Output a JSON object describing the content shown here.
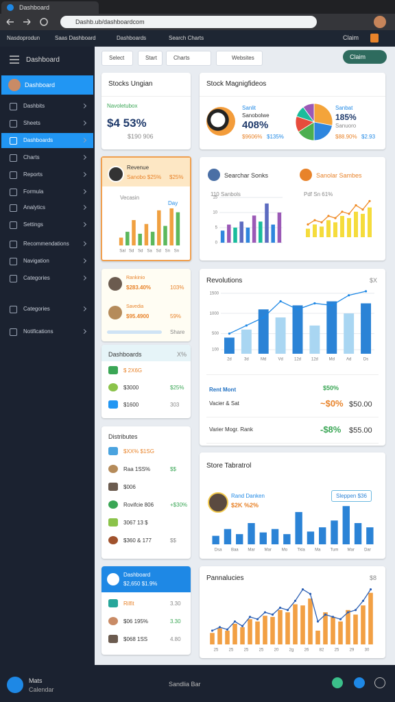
{
  "browser": {
    "tab": "Dashboard",
    "url": "Dashb.ub/dashboardcom",
    "bookmarks": [
      "Nasdoprodun",
      "Saas Dashboard",
      "Dashboards",
      "Search Charts"
    ],
    "action": "Claim"
  },
  "sidebar": {
    "title": "Dashboard",
    "profile": "Dashboard",
    "items": [
      "Dashbits",
      "Sheets",
      "Dashboards",
      "Charts",
      "Reports",
      "Formula",
      "Analytics",
      "Settings",
      "Recommendations",
      "Navigation",
      "Categories",
      "Categories",
      "Notifications"
    ]
  },
  "toolbar": [
    "Select",
    "Start",
    "Charts",
    "Websites"
  ],
  "cards": {
    "stocks": {
      "title": "Stocks Ungian",
      "label": "Navoletubox",
      "value": "$4 53%",
      "sub": "$190 906"
    },
    "magnitudes": {
      "title": "Stock Magnigfideos",
      "left": {
        "name": "Sanlit",
        "sub": "Sanobolwe",
        "value": "408%",
        "foot": [
          "$9606%",
          "$135%"
        ]
      },
      "right": {
        "name": "Sanbat",
        "value": "185%",
        "sub": "Sanuoro",
        "foot": [
          "$88.90%",
          "$2.93"
        ]
      },
      "pie": {
        "values": [
          28,
          22,
          16,
          14,
          10,
          10
        ],
        "colors": [
          "#f4a43a",
          "#2e86de",
          "#4caf50",
          "#e74c3c",
          "#1abc9c",
          "#9b59b6"
        ]
      }
    },
    "revenue": {
      "name": "Revenue",
      "sub": "Sanobo $25%",
      "right": "$25%",
      "label": "Vecasin",
      "period": "Day",
      "chart": {
        "values": [
          8,
          14,
          26,
          12,
          22,
          14,
          36,
          20,
          38,
          34
        ],
        "ylim": [
          0,
          45
        ],
        "colors": [
          "#f0a040",
          "#5cb85c"
        ],
        "xlabels": [
          "Sal",
          "Sd",
          "Sd",
          "Sa",
          "Sd",
          "Sn",
          "Sn"
        ]
      }
    },
    "searches": {
      "left_title": "Searchar Sonks",
      "right_title": "Sanolar Sambes",
      "left_label": "110 Sanbols",
      "right_label": "Pdf Sn 61%",
      "left_chart": {
        "values": [
          4,
          6,
          5,
          7,
          5,
          9,
          7,
          13,
          6,
          10
        ],
        "ylim": [
          0,
          15
        ],
        "yticks": [
          0,
          5,
          10,
          15
        ],
        "colors": [
          "#2e86de",
          "#9b59b6",
          "#1abc9c",
          "#5c6bc0"
        ]
      },
      "right_chart": {
        "values": [
          4,
          6,
          5,
          8,
          7,
          10,
          9,
          12,
          11,
          14
        ],
        "ylim": [
          0,
          20
        ],
        "color": "#f5dc3c",
        "line": [
          6,
          8,
          7,
          10,
          9,
          12,
          11,
          15,
          13,
          17
        ],
        "line_color": "#f08a24"
      }
    },
    "rankings": {
      "rows": [
        {
          "name": "Rankinio",
          "value": "$283.40%",
          "pct": "103%"
        },
        {
          "name": "Savedia",
          "value": "$95.4900",
          "pct": "59%"
        }
      ],
      "footer": "Share"
    },
    "revolutions": {
      "title": "Revolutions",
      "badge": "$X",
      "chart": {
        "values": [
          400,
          600,
          1100,
          900,
          1200,
          700,
          1300,
          1000,
          1250
        ],
        "ylim": [
          0,
          1700
        ],
        "yticks": [
          100,
          500,
          1000,
          1500
        ],
        "colors": [
          "#2b83d6",
          "#a9d6f2"
        ],
        "line": [
          500,
          700,
          900,
          1300,
          1100,
          1250,
          1200,
          1450,
          1550
        ],
        "line_color": "#1e88e5",
        "xlabels": [
          "2d",
          "3d",
          "Md",
          "Vd",
          "12d",
          "12d",
          "Md",
          "Ad",
          "Ds"
        ]
      },
      "rows": [
        {
          "name": "Rent Mont",
          "pct": "$50%"
        },
        {
          "name": "Vacier & Sat",
          "pct": "~$0%",
          "value": "$50.00"
        },
        {
          "name": "Varier Mogr. Rank",
          "pct": "-$8%",
          "value": "$55.00"
        }
      ]
    },
    "dashboards": {
      "title": "Dashboards",
      "badge": "X%",
      "rows": [
        [
          "$ 2X6G"
        ],
        [
          "$3000",
          "$25%"
        ],
        [
          "$1600",
          "303"
        ]
      ]
    },
    "distributes": {
      "title": "Distributes",
      "rows": [
        [
          "$XX% $1SG"
        ],
        [
          "Raa 1SS%",
          "$$"
        ],
        [
          "$006"
        ],
        [
          "Rovifcie 806",
          "+$30%"
        ],
        [
          "3067 13 $"
        ],
        [
          "$360 & 177",
          "$$"
        ]
      ]
    },
    "store": {
      "title": "Store Tabratrol",
      "name": "Rand Danken",
      "value": "$2K %2%",
      "badge": "Sleppen $36",
      "chart": {
        "values": [
          10,
          18,
          12,
          25,
          14,
          18,
          12,
          38,
          15,
          20,
          28,
          45,
          25,
          20
        ],
        "ylim": [
          0,
          50
        ],
        "color": "#2b83d6",
        "xlabels": [
          "Dsa",
          "Baa",
          "Mar",
          "Mar",
          "Mo",
          "Tkla",
          "Ma",
          "Tum",
          "Mar",
          "Dar"
        ]
      }
    },
    "dashboard2": {
      "title": "Dashboard",
      "sub": "$2,650 $1.9%",
      "rows": [
        [
          "Rilfit",
          "3.30"
        ],
        [
          "$06 195%",
          "3.30"
        ],
        [
          "$068 1SS",
          "4.80"
        ]
      ]
    },
    "panels": {
      "title": "Pannalucies",
      "badge": "$8",
      "chart": {
        "values": [
          10,
          14,
          12,
          18,
          15,
          22,
          20,
          25,
          24,
          30,
          28,
          35,
          34,
          40,
          12,
          28,
          24,
          20,
          30,
          26,
          34,
          45
        ],
        "ylim": [
          0,
          55
        ],
        "color": "#f2a044",
        "line": [
          12,
          15,
          13,
          20,
          16,
          24,
          22,
          28,
          26,
          32,
          30,
          38,
          48,
          44,
          20,
          26,
          24,
          22,
          28,
          30,
          38,
          48
        ],
        "line_color": "#2b5fb4",
        "xlabels": [
          "25",
          "25",
          "25",
          "25",
          "20",
          "2g",
          "26",
          "82",
          "25",
          "29",
          "30"
        ]
      }
    }
  },
  "bottom": {
    "name": "Mats",
    "sub": "Calendar",
    "center": "Sandlia Bar"
  }
}
